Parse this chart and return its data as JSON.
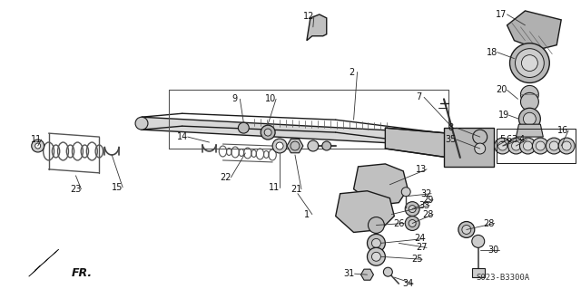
{
  "bg_color": "#ffffff",
  "diagram_code": "S023-B3300A",
  "figsize": [
    6.4,
    3.19
  ],
  "dpi": 100,
  "line_color": "#1a1a1a",
  "text_color": "#111111",
  "font_size": 7.0,
  "gray_fill": "#c8c8c8",
  "gray_dark": "#888888",
  "gray_med": "#aaaaaa",
  "gray_light": "#e0e0e0"
}
